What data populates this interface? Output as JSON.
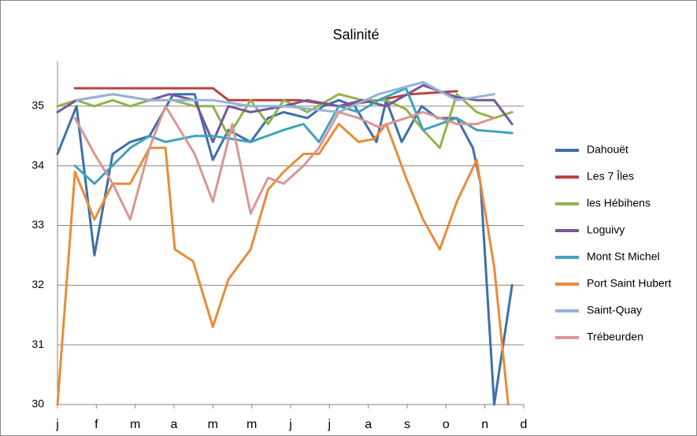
{
  "chart_data": {
    "type": "line",
    "title": "Salinité",
    "xlim": [
      0,
      12
    ],
    "xticks": [
      {
        "value": 0,
        "label": "j"
      },
      {
        "value": 1,
        "label": "f"
      },
      {
        "value": 2,
        "label": "m"
      },
      {
        "value": 3,
        "label": "a"
      },
      {
        "value": 4,
        "label": "m"
      },
      {
        "value": 5,
        "label": "m"
      },
      {
        "value": 6,
        "label": "j"
      },
      {
        "value": 7,
        "label": "j"
      },
      {
        "value": 8,
        "label": "a"
      },
      {
        "value": 9,
        "label": "s"
      },
      {
        "value": 10,
        "label": "o"
      },
      {
        "value": 11,
        "label": "n"
      },
      {
        "value": 12,
        "label": "d"
      }
    ],
    "ylim": [
      30,
      35.75
    ],
    "yticks": [
      30,
      31,
      32,
      33,
      34,
      35
    ],
    "grid": true,
    "legend": "right",
    "series": [
      {
        "name": "Dahouët",
        "color": "#3f6fa8",
        "x": [
          0,
          0.49,
          0.95,
          1.42,
          1.87,
          2.37,
          2.98,
          3.53,
          4.0,
          4.4,
          4.97,
          5.42,
          5.82,
          6.43,
          6.84,
          7.24,
          7.65,
          8.21,
          8.46,
          8.86,
          9.37,
          9.78,
          10.28,
          10.69,
          10.89,
          11.24,
          11.7
        ],
        "values": [
          34.2,
          35.0,
          32.5,
          34.2,
          34.4,
          34.5,
          35.2,
          35.2,
          34.1,
          34.6,
          34.4,
          34.8,
          34.9,
          34.8,
          35.0,
          35.1,
          35.0,
          34.4,
          35.1,
          34.4,
          35.0,
          34.8,
          34.8,
          34.3,
          33.7,
          30.0,
          32.0
        ]
      },
      {
        "name": "Les 7 Îles",
        "color": "#b94441",
        "x": [
          0.45,
          4.0,
          4.4,
          6.23,
          7.24,
          8.26,
          9.07,
          10.28
        ],
        "values": [
          35.3,
          35.3,
          35.1,
          35.1,
          35.0,
          35.1,
          35.2,
          35.25
        ]
      },
      {
        "name": "les Hébihens",
        "color": "#92b24c",
        "x": [
          0,
          0.49,
          0.95,
          1.42,
          1.87,
          2.37,
          2.98,
          3.53,
          4.0,
          4.4,
          4.97,
          5.42,
          5.82,
          6.43,
          7.24,
          7.85,
          8.46,
          8.97,
          9.41,
          9.84,
          10.28,
          10.79,
          11.24,
          11.7
        ],
        "values": [
          35.0,
          35.1,
          35.0,
          35.1,
          35.0,
          35.1,
          35.1,
          35.0,
          35.0,
          34.5,
          35.1,
          34.7,
          35.1,
          34.9,
          35.2,
          35.1,
          35.1,
          34.95,
          34.6,
          34.3,
          35.2,
          34.9,
          34.8,
          34.9
        ]
      },
      {
        "name": "Loguivy",
        "color": "#74589a",
        "x": [
          0,
          0.49,
          1.42,
          2.37,
          2.88,
          3.53,
          4.0,
          4.4,
          4.97,
          5.82,
          6.43,
          7.24,
          7.85,
          8.46,
          9.41,
          10.28,
          10.79,
          11.24,
          11.7
        ],
        "values": [
          34.9,
          35.1,
          35.2,
          35.1,
          35.2,
          35.1,
          34.4,
          35.0,
          34.9,
          35.0,
          35.1,
          35.0,
          35.1,
          35.0,
          35.35,
          35.15,
          35.1,
          35.1,
          34.7
        ]
      },
      {
        "name": "Mont St Michel",
        "color": "#3fa3bd",
        "x": [
          0.45,
          0.95,
          1.87,
          2.37,
          2.78,
          3.53,
          4.0,
          4.97,
          5.82,
          6.33,
          6.73,
          7.24,
          7.75,
          8.26,
          8.97,
          9.41,
          10.28,
          10.79,
          11.7
        ],
        "values": [
          34.0,
          33.7,
          34.3,
          34.5,
          34.4,
          34.5,
          34.5,
          34.4,
          34.6,
          34.7,
          34.4,
          35.0,
          34.9,
          35.1,
          35.3,
          34.6,
          34.8,
          34.6,
          34.55
        ]
      },
      {
        "name": "Port Saint Hubert",
        "color": "#e98c3a",
        "x": [
          0,
          0.45,
          0.95,
          1.42,
          1.87,
          2.37,
          2.78,
          3.02,
          3.49,
          4.0,
          4.4,
          4.97,
          5.42,
          5.82,
          6.33,
          6.73,
          7.24,
          7.75,
          8.15,
          8.46,
          8.97,
          9.41,
          9.84,
          10.28,
          10.79,
          11.24,
          11.6
        ],
        "values": [
          30.0,
          33.9,
          33.1,
          33.7,
          33.7,
          34.3,
          34.3,
          32.6,
          32.4,
          31.3,
          32.1,
          32.6,
          33.6,
          33.9,
          34.2,
          34.2,
          34.7,
          34.4,
          34.45,
          34.7,
          33.8,
          33.1,
          32.6,
          33.4,
          34.1,
          32.3,
          30.0
        ]
      },
      {
        "name": "Saint-Quay",
        "color": "#95b3d7",
        "x": [
          0.49,
          1.42,
          2.37,
          4.0,
          4.97,
          5.82,
          7.24,
          8.26,
          9.41,
          10.28,
          11.24
        ],
        "values": [
          35.1,
          35.2,
          35.1,
          35.1,
          35.0,
          35.0,
          34.9,
          35.2,
          35.4,
          35.1,
          35.2
        ]
      },
      {
        "name": "Trébeurden",
        "color": "#d99694",
        "x": [
          0.45,
          0.95,
          1.42,
          1.87,
          2.37,
          2.78,
          3.53,
          4.0,
          4.5,
          4.97,
          5.42,
          5.82,
          6.33,
          6.73,
          7.24,
          7.75,
          8.26,
          8.97,
          9.41,
          10.28,
          10.79,
          11.24
        ],
        "values": [
          34.8,
          34.2,
          33.7,
          33.1,
          34.3,
          35.0,
          34.2,
          33.4,
          34.7,
          33.2,
          33.8,
          33.7,
          34.0,
          34.3,
          34.9,
          34.8,
          34.65,
          34.8,
          34.9,
          34.7,
          34.7,
          34.8
        ]
      }
    ]
  }
}
